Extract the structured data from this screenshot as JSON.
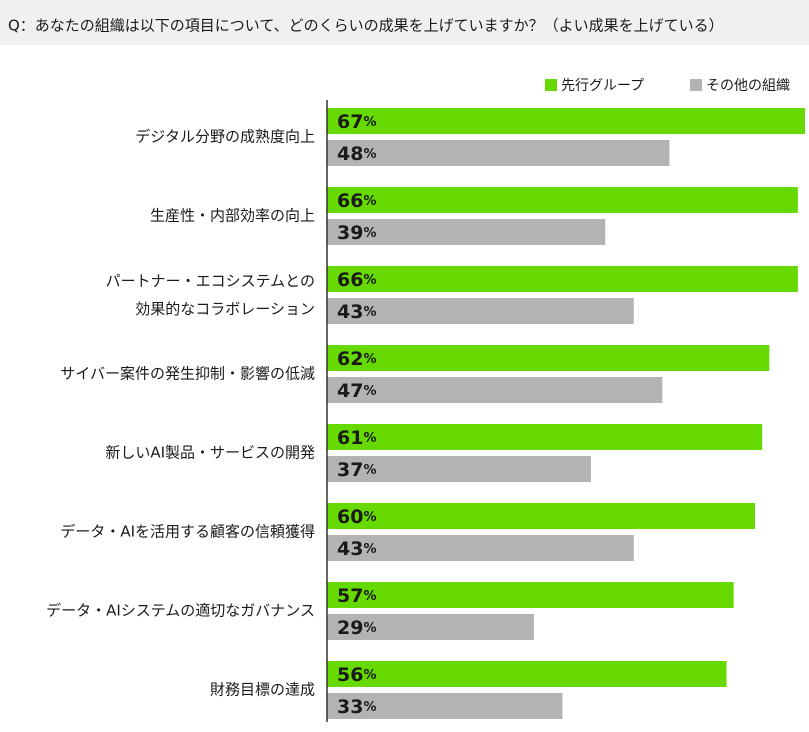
{
  "chart_data": {
    "type": "bar",
    "orientation": "horizontal",
    "title": "Q：あなたの組織は以下の項目について、どのくらいの成果を上げていますか？（よい成果を上げている）",
    "categories": [
      "デジタル分野の成熟度向上",
      "生産性・内部効率の向上",
      "パートナー・エコシステムとの\n効果的なコラボレーション",
      "サイバー案件の発生抑制・影響の低減",
      "新しいAI製品・サービスの開発",
      "データ・AIを活用する顧客の信頼獲得",
      "データ・AIシステムの適切なガバナンス",
      "財務目標の達成"
    ],
    "series": [
      {
        "name": "先行グループ",
        "color": "#66d900",
        "values": [
          67,
          66,
          66,
          62,
          61,
          60,
          57,
          56
        ],
        "value_labels": [
          "67%",
          "66%",
          "66%",
          "62%",
          "61%",
          "60%",
          "57%",
          "56%"
        ]
      },
      {
        "name": "その他の組織",
        "color": "#b3b3b3",
        "values": [
          48,
          39,
          43,
          47,
          37,
          43,
          29,
          33
        ],
        "value_labels": [
          "48%",
          "39%",
          "43%",
          "47%",
          "37%",
          "43%",
          "29%",
          "33%"
        ]
      }
    ],
    "legend": "top-right"
  }
}
